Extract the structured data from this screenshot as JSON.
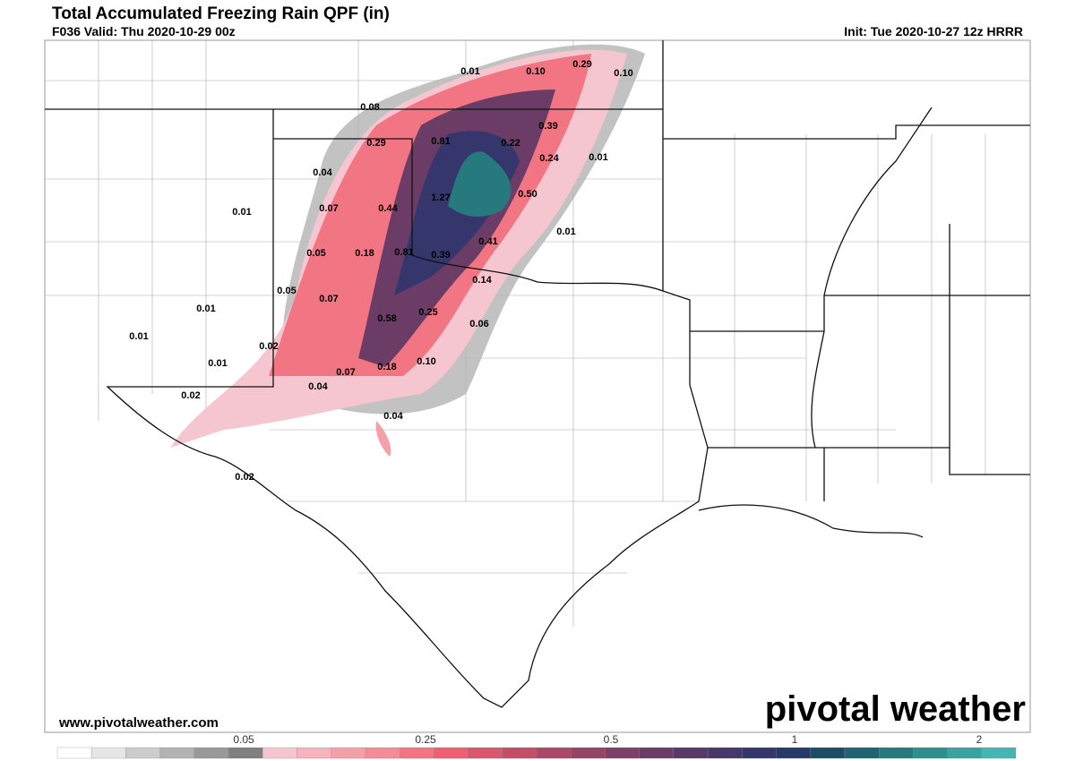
{
  "header": {
    "title": "Total Accumulated Freezing Rain QPF (in)",
    "valid": "F036 Valid: Thu 2020-10-29 00z",
    "init": "Init: Tue 2020-10-27 12z HRRR"
  },
  "map": {
    "labels": [
      "0.01",
      "0.10",
      "0.29",
      "0.10",
      "0.08",
      "0.39",
      "0.29",
      "0.81",
      "0.22",
      "0.24",
      "0.01",
      "0.04",
      "1.27",
      "0.50",
      "0.01",
      "0.07",
      "0.44",
      "0.01",
      "0.41",
      "0.05",
      "0.18",
      "0.81",
      "0.39",
      "0.14",
      "0.05",
      "0.07",
      "0.01",
      "0.25",
      "0.58",
      "0.06",
      "0.01",
      "0.02",
      "0.01",
      "0.10",
      "0.18",
      "0.07",
      "0.04",
      "0.02",
      "0.04",
      "0.02"
    ]
  },
  "footer": {
    "website": "www.pivotalweather.com",
    "logo": "pivotal weather"
  },
  "colorbar": {
    "colors": [
      "#ffffff",
      "#e6e6e6",
      "#cccccc",
      "#b3b3b3",
      "#999999",
      "#808080",
      "#f5c6cf",
      "#f6b3bd",
      "#f4a0aa",
      "#f48c97",
      "#f27583",
      "#ee5f6f",
      "#d9566c",
      "#c24e6a",
      "#ab4868",
      "#954466",
      "#7e4066",
      "#6a3c66",
      "#573a68",
      "#46386a",
      "#35366b",
      "#253a66",
      "#1b4d66",
      "#1f6470",
      "#267a7d",
      "#2e8f8c",
      "#3aa3a0",
      "#46b5b4"
    ],
    "ticks": [
      "0.05",
      "0.25",
      "0.5",
      "1",
      "2"
    ]
  }
}
